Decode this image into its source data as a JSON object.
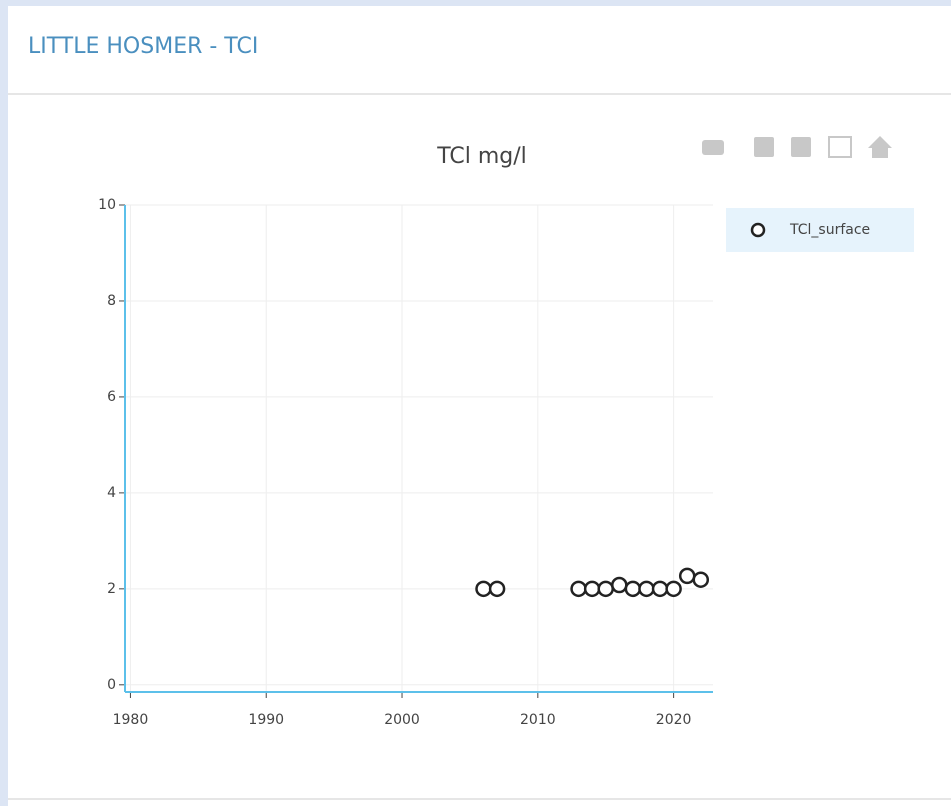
{
  "header": {
    "title": "LITTLE HOSMER - TCI"
  },
  "chart_data": {
    "type": "scatter",
    "title": "TCl mg/l",
    "series": [
      {
        "name": "TCl_surface",
        "color": "#222222",
        "x": [
          2006,
          2007,
          2013,
          2014,
          2015,
          2016,
          2017,
          2018,
          2019,
          2020,
          2021,
          2022
        ],
        "values": [
          2,
          2,
          2,
          2,
          2,
          2.08,
          2,
          2,
          2,
          2,
          2.27,
          2.19
        ]
      }
    ],
    "xlim": [
      1979.6,
      2022.9
    ],
    "xticks": [
      1980,
      1990,
      2000,
      2010,
      2020
    ],
    "ylim": [
      -0.15,
      10
    ],
    "yticks": [
      0,
      2,
      4,
      6,
      8,
      10
    ],
    "grid": true,
    "legend": "right"
  }
}
